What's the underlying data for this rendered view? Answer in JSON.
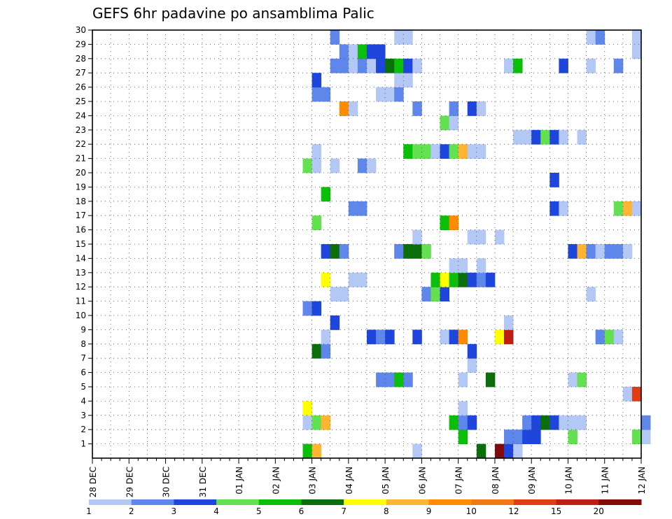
{
  "chart_data": {
    "type": "heatmap",
    "title": "GEFS 6hr padavine po ansamblima Palic",
    "y_ticks": [
      "1",
      "2",
      "3",
      "4",
      "5",
      "6",
      "7",
      "8",
      "9",
      "10",
      "11",
      "12",
      "13",
      "14",
      "15",
      "16",
      "17",
      "18",
      "19",
      "20",
      "21",
      "22",
      "23",
      "24",
      "25",
      "26",
      "27",
      "28",
      "29",
      "30"
    ],
    "y_range": [
      0,
      30
    ],
    "x_ticks": [
      "28 DEC",
      "29 DEC",
      "30 DEC",
      "31 DEC",
      "01 JAN",
      "02 JAN",
      "03 JAN",
      "04 JAN",
      "05 JAN",
      "06 JAN",
      "07 JAN",
      "08 JAN",
      "09 JAN",
      "10 JAN",
      "11 JAN",
      "12 JAN"
    ],
    "x_step_hours": 6,
    "x_range_steps": [
      0,
      60
    ],
    "grid": true,
    "legend": "bottom",
    "colorbar": {
      "labels": [
        "1",
        "2",
        "3",
        "4",
        "5",
        "6",
        "7",
        "8",
        "9",
        "10",
        "12",
        "15",
        "20"
      ],
      "colors": [
        "#b4c8f5",
        "#5f87eb",
        "#1e46dc",
        "#64e150",
        "#0abe0a",
        "#0a6e0a",
        "#ffff00",
        "#ffb432",
        "#ff8c00",
        "#f07814",
        "#e13c14",
        "#be1e14",
        "#820a0a"
      ]
    },
    "cells": [
      [
        23,
        0,
        5
      ],
      [
        24,
        0,
        8
      ],
      [
        35,
        0,
        1
      ],
      [
        42,
        0,
        6
      ],
      [
        44,
        0,
        13
      ],
      [
        45,
        0,
        3
      ],
      [
        46,
        0,
        1
      ],
      [
        40,
        1,
        5
      ],
      [
        45,
        1,
        2
      ],
      [
        46,
        1,
        2
      ],
      [
        47,
        1,
        3
      ],
      [
        48,
        1,
        3
      ],
      [
        52,
        1,
        4
      ],
      [
        59,
        1,
        4
      ],
      [
        60,
        1,
        1
      ],
      [
        23,
        2,
        1
      ],
      [
        24,
        2,
        4
      ],
      [
        25,
        2,
        8
      ],
      [
        39,
        2,
        5
      ],
      [
        40,
        2,
        2
      ],
      [
        41,
        2,
        3
      ],
      [
        47,
        2,
        2
      ],
      [
        48,
        2,
        3
      ],
      [
        49,
        2,
        6
      ],
      [
        50,
        2,
        3
      ],
      [
        51,
        2,
        1
      ],
      [
        52,
        2,
        1
      ],
      [
        53,
        2,
        1
      ],
      [
        60,
        2,
        2
      ],
      [
        23,
        3,
        7
      ],
      [
        40,
        3,
        1
      ],
      [
        58,
        4,
        1
      ],
      [
        59,
        4,
        11
      ],
      [
        31,
        5,
        2
      ],
      [
        32,
        5,
        2
      ],
      [
        33,
        5,
        5
      ],
      [
        34,
        5,
        2
      ],
      [
        40,
        5,
        1
      ],
      [
        43,
        5,
        6
      ],
      [
        52,
        5,
        1
      ],
      [
        53,
        5,
        4
      ],
      [
        41,
        6,
        1
      ],
      [
        24,
        7,
        6
      ],
      [
        25,
        7,
        2
      ],
      [
        41,
        7,
        3
      ],
      [
        25,
        8,
        1
      ],
      [
        30,
        8,
        3
      ],
      [
        31,
        8,
        2
      ],
      [
        32,
        8,
        3
      ],
      [
        35,
        8,
        3
      ],
      [
        38,
        8,
        1
      ],
      [
        39,
        8,
        3
      ],
      [
        40,
        8,
        9
      ],
      [
        44,
        8,
        7
      ],
      [
        45,
        8,
        12
      ],
      [
        55,
        8,
        2
      ],
      [
        56,
        8,
        4
      ],
      [
        57,
        8,
        1
      ],
      [
        26,
        9,
        3
      ],
      [
        45,
        9,
        1
      ],
      [
        23,
        10,
        2
      ],
      [
        24,
        10,
        3
      ],
      [
        26,
        11,
        1
      ],
      [
        27,
        11,
        1
      ],
      [
        36,
        11,
        2
      ],
      [
        37,
        11,
        4
      ],
      [
        38,
        11,
        3
      ],
      [
        54,
        11,
        1
      ],
      [
        25,
        12,
        7
      ],
      [
        28,
        12,
        1
      ],
      [
        29,
        12,
        1
      ],
      [
        37,
        12,
        5
      ],
      [
        38,
        12,
        7
      ],
      [
        39,
        12,
        5
      ],
      [
        40,
        12,
        6
      ],
      [
        41,
        12,
        3
      ],
      [
        42,
        12,
        2
      ],
      [
        43,
        12,
        3
      ],
      [
        39,
        13,
        1
      ],
      [
        40,
        13,
        1
      ],
      [
        42,
        13,
        1
      ],
      [
        25,
        14,
        3
      ],
      [
        26,
        14,
        6
      ],
      [
        27,
        14,
        2
      ],
      [
        33,
        14,
        2
      ],
      [
        34,
        14,
        6
      ],
      [
        35,
        14,
        6
      ],
      [
        36,
        14,
        4
      ],
      [
        52,
        14,
        3
      ],
      [
        53,
        14,
        8
      ],
      [
        54,
        14,
        2
      ],
      [
        55,
        14,
        1
      ],
      [
        56,
        14,
        2
      ],
      [
        57,
        14,
        2
      ],
      [
        58,
        14,
        1
      ],
      [
        35,
        15,
        1
      ],
      [
        41,
        15,
        1
      ],
      [
        42,
        15,
        1
      ],
      [
        44,
        15,
        1
      ],
      [
        24,
        16,
        4
      ],
      [
        38,
        16,
        5
      ],
      [
        39,
        16,
        9
      ],
      [
        28,
        17,
        2
      ],
      [
        29,
        17,
        2
      ],
      [
        50,
        17,
        3
      ],
      [
        51,
        17,
        1
      ],
      [
        57,
        17,
        4
      ],
      [
        58,
        17,
        8
      ],
      [
        59,
        17,
        1
      ],
      [
        25,
        18,
        5
      ],
      [
        50,
        19,
        3
      ],
      [
        23,
        20,
        4
      ],
      [
        24,
        20,
        1
      ],
      [
        26,
        20,
        1
      ],
      [
        29,
        20,
        2
      ],
      [
        30,
        20,
        1
      ],
      [
        24,
        21,
        1
      ],
      [
        34,
        21,
        5
      ],
      [
        35,
        21,
        4
      ],
      [
        36,
        21,
        4
      ],
      [
        37,
        21,
        1
      ],
      [
        38,
        21,
        3
      ],
      [
        39,
        21,
        4
      ],
      [
        40,
        21,
        8
      ],
      [
        41,
        21,
        1
      ],
      [
        42,
        21,
        1
      ],
      [
        46,
        22,
        1
      ],
      [
        47,
        22,
        1
      ],
      [
        48,
        22,
        3
      ],
      [
        49,
        22,
        4
      ],
      [
        50,
        22,
        3
      ],
      [
        51,
        22,
        1
      ],
      [
        53,
        22,
        1
      ],
      [
        38,
        23,
        4
      ],
      [
        39,
        23,
        1
      ],
      [
        27,
        24,
        9
      ],
      [
        28,
        24,
        1
      ],
      [
        35,
        24,
        2
      ],
      [
        39,
        24,
        2
      ],
      [
        41,
        24,
        3
      ],
      [
        42,
        24,
        1
      ],
      [
        24,
        25,
        2
      ],
      [
        25,
        25,
        2
      ],
      [
        31,
        25,
        1
      ],
      [
        32,
        25,
        1
      ],
      [
        33,
        25,
        2
      ],
      [
        24,
        26,
        3
      ],
      [
        33,
        26,
        1
      ],
      [
        34,
        26,
        1
      ],
      [
        26,
        27,
        2
      ],
      [
        27,
        27,
        2
      ],
      [
        28,
        27,
        1
      ],
      [
        29,
        27,
        2
      ],
      [
        30,
        27,
        1
      ],
      [
        31,
        27,
        3
      ],
      [
        32,
        27,
        6
      ],
      [
        33,
        27,
        5
      ],
      [
        34,
        27,
        3
      ],
      [
        35,
        27,
        1
      ],
      [
        45,
        27,
        1
      ],
      [
        46,
        27,
        5
      ],
      [
        51,
        27,
        3
      ],
      [
        54,
        27,
        1
      ],
      [
        57,
        27,
        2
      ],
      [
        27,
        28,
        2
      ],
      [
        28,
        28,
        1
      ],
      [
        29,
        28,
        5
      ],
      [
        30,
        28,
        3
      ],
      [
        31,
        28,
        3
      ],
      [
        59,
        28,
        1
      ],
      [
        26,
        29,
        2
      ],
      [
        33,
        29,
        1
      ],
      [
        34,
        29,
        1
      ],
      [
        54,
        29,
        1
      ],
      [
        55,
        29,
        2
      ],
      [
        59,
        29,
        1
      ]
    ]
  }
}
